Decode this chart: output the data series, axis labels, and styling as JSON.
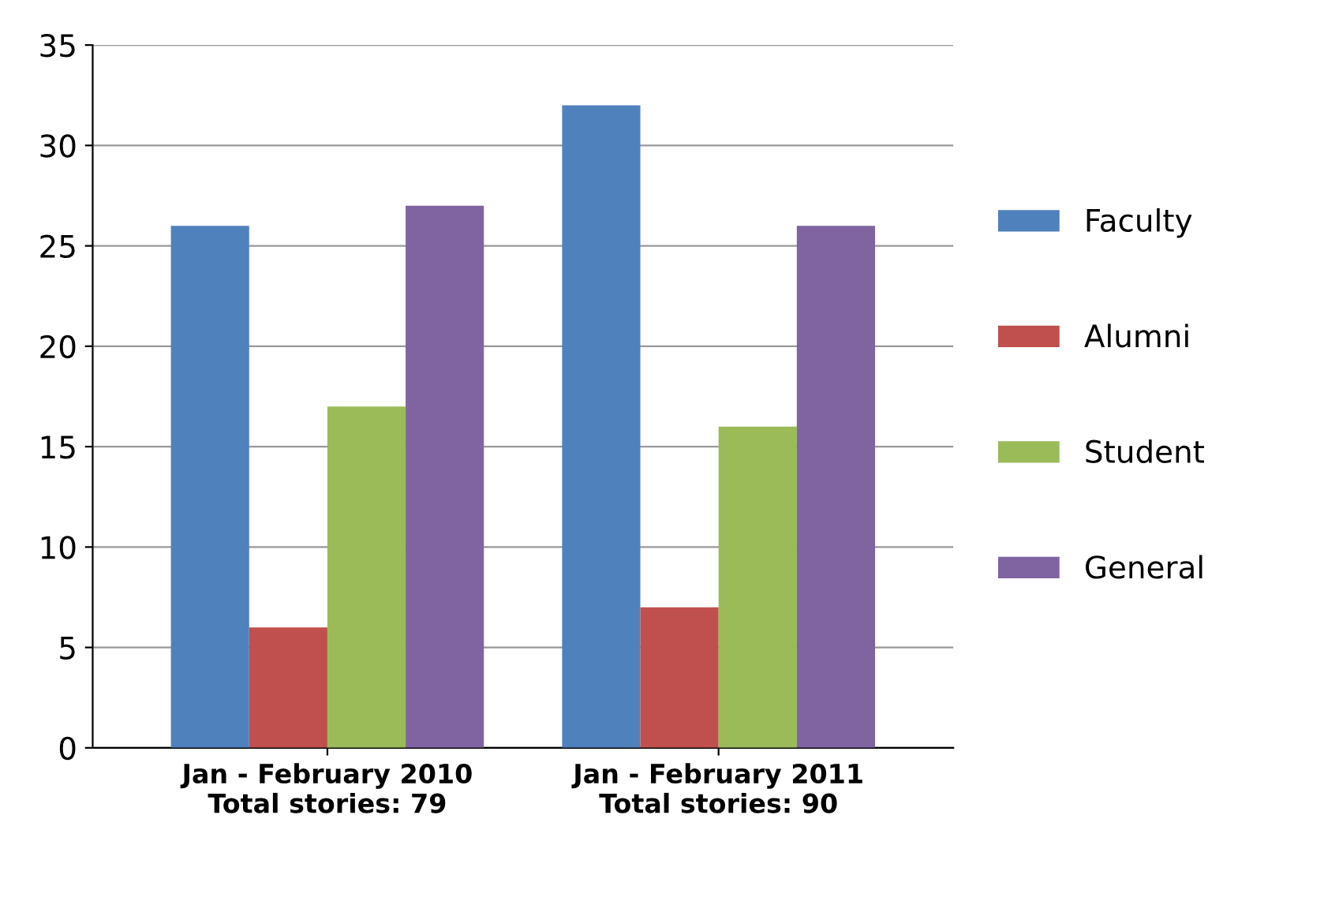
{
  "chart_data": {
    "type": "bar",
    "categories": [
      "Jan - February 2010\nTotal stories: 79",
      "Jan - February 2011\nTotal stories: 90"
    ],
    "series": [
      {
        "name": "Faculty",
        "color": "#4f81bd",
        "values": [
          26,
          32
        ]
      },
      {
        "name": "Alumni",
        "color": "#c0504d",
        "values": [
          6,
          7
        ]
      },
      {
        "name": "Student",
        "color": "#9bbb59",
        "values": [
          17,
          16
        ]
      },
      {
        "name": "General",
        "color": "#8064a2",
        "values": [
          27,
          26
        ]
      }
    ],
    "ylim": [
      0,
      35
    ],
    "yticks": [
      0,
      5,
      10,
      15,
      20,
      25,
      30,
      35
    ],
    "grid": "y",
    "legend": "right"
  }
}
